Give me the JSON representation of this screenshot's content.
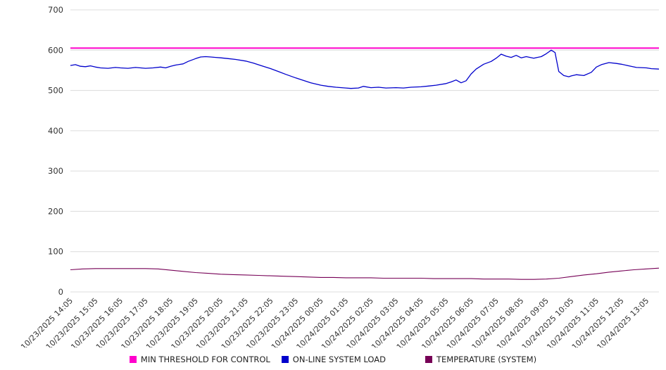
{
  "chart_data": {
    "type": "line",
    "title": "",
    "xlabel": "",
    "ylabel": "",
    "ylim": [
      0,
      700
    ],
    "y_ticks": [
      0,
      100,
      200,
      300,
      400,
      500,
      600,
      700
    ],
    "grid": true,
    "legend_position": "bottom",
    "x_labels": [
      "10/23/2025 14:05",
      "10/23/2025 15:05",
      "10/23/2025 16:05",
      "10/23/2025 17:05",
      "10/23/2025 18:05",
      "10/23/2025 19:05",
      "10/23/2025 20:05",
      "10/23/2025 21:05",
      "10/23/2025 22:05",
      "10/23/2025 23:05",
      "10/24/2025 00:05",
      "10/24/2025 01:05",
      "10/24/2025 02:05",
      "10/24/2025 03:05",
      "10/24/2025 04:05",
      "10/24/2025 05:05",
      "10/24/2025 06:05",
      "10/24/2025 07:05",
      "10/24/2025 08:05",
      "10/24/2025 09:05",
      "10/24/2025 10:05",
      "10/24/2025 11:05",
      "10/24/2025 12:05",
      "10/24/2025 13:05"
    ],
    "series": [
      {
        "name": "MIN THRESHOLD FOR CONTROL",
        "color": "#ff00cc",
        "points": [
          [
            0,
            605
          ],
          [
            23.5,
            605
          ]
        ]
      },
      {
        "name": "ON-LINE SYSTEM LOAD",
        "color": "#0000cc",
        "points": [
          [
            0,
            562
          ],
          [
            0.2,
            564
          ],
          [
            0.4,
            560
          ],
          [
            0.6,
            559
          ],
          [
            0.8,
            561
          ],
          [
            1,
            558
          ],
          [
            1.2,
            556
          ],
          [
            1.5,
            555
          ],
          [
            1.8,
            557
          ],
          [
            2,
            556
          ],
          [
            2.3,
            555
          ],
          [
            2.6,
            557
          ],
          [
            3,
            555
          ],
          [
            3.3,
            556
          ],
          [
            3.6,
            558
          ],
          [
            3.8,
            556
          ],
          [
            4,
            560
          ],
          [
            4.2,
            563
          ],
          [
            4.5,
            566
          ],
          [
            4.7,
            572
          ],
          [
            5,
            579
          ],
          [
            5.2,
            583
          ],
          [
            5.4,
            584
          ],
          [
            5.6,
            583
          ],
          [
            5.8,
            582
          ],
          [
            6,
            581
          ],
          [
            6.3,
            579
          ],
          [
            6.6,
            577
          ],
          [
            7,
            573
          ],
          [
            7.3,
            568
          ],
          [
            7.6,
            562
          ],
          [
            8,
            554
          ],
          [
            8.3,
            547
          ],
          [
            8.6,
            540
          ],
          [
            9,
            531
          ],
          [
            9.3,
            525
          ],
          [
            9.6,
            519
          ],
          [
            10,
            513
          ],
          [
            10.3,
            510
          ],
          [
            10.6,
            508
          ],
          [
            11,
            506
          ],
          [
            11.2,
            505
          ],
          [
            11.5,
            506
          ],
          [
            11.7,
            510
          ],
          [
            12,
            507
          ],
          [
            12.3,
            508
          ],
          [
            12.6,
            506
          ],
          [
            13,
            507
          ],
          [
            13.3,
            506
          ],
          [
            13.6,
            508
          ],
          [
            14,
            509
          ],
          [
            14.3,
            511
          ],
          [
            14.6,
            513
          ],
          [
            15,
            517
          ],
          [
            15.2,
            521
          ],
          [
            15.4,
            526
          ],
          [
            15.6,
            519
          ],
          [
            15.8,
            524
          ],
          [
            16,
            541
          ],
          [
            16.2,
            553
          ],
          [
            16.5,
            565
          ],
          [
            16.8,
            572
          ],
          [
            17,
            580
          ],
          [
            17.2,
            590
          ],
          [
            17.4,
            585
          ],
          [
            17.6,
            582
          ],
          [
            17.8,
            587
          ],
          [
            18,
            581
          ],
          [
            18.2,
            584
          ],
          [
            18.5,
            580
          ],
          [
            18.8,
            584
          ],
          [
            19,
            591
          ],
          [
            19.2,
            600
          ],
          [
            19.35,
            594
          ],
          [
            19.5,
            547
          ],
          [
            19.7,
            537
          ],
          [
            19.9,
            534
          ],
          [
            20,
            536
          ],
          [
            20.2,
            539
          ],
          [
            20.5,
            537
          ],
          [
            20.8,
            545
          ],
          [
            21,
            558
          ],
          [
            21.2,
            564
          ],
          [
            21.5,
            569
          ],
          [
            21.8,
            567
          ],
          [
            22,
            565
          ],
          [
            22.3,
            561
          ],
          [
            22.6,
            557
          ],
          [
            23,
            556
          ],
          [
            23.2,
            554
          ],
          [
            23.5,
            553
          ]
        ]
      },
      {
        "name": "TEMPERATURE (SYSTEM)",
        "color": "#760056",
        "points": [
          [
            0,
            55
          ],
          [
            0.5,
            57
          ],
          [
            1,
            58
          ],
          [
            1.5,
            58
          ],
          [
            2,
            58
          ],
          [
            2.5,
            58
          ],
          [
            3,
            58
          ],
          [
            3.5,
            57
          ],
          [
            4,
            54
          ],
          [
            4.5,
            51
          ],
          [
            5,
            48
          ],
          [
            5.5,
            46
          ],
          [
            6,
            44
          ],
          [
            6.5,
            43
          ],
          [
            7,
            42
          ],
          [
            7.5,
            41
          ],
          [
            8,
            40
          ],
          [
            8.5,
            39
          ],
          [
            9,
            38
          ],
          [
            9.5,
            37
          ],
          [
            10,
            36
          ],
          [
            10.5,
            36
          ],
          [
            11,
            35
          ],
          [
            11.5,
            35
          ],
          [
            12,
            35
          ],
          [
            12.5,
            34
          ],
          [
            13,
            34
          ],
          [
            13.5,
            34
          ],
          [
            14,
            34
          ],
          [
            14.5,
            33
          ],
          [
            15,
            33
          ],
          [
            15.5,
            33
          ],
          [
            16,
            33
          ],
          [
            16.5,
            32
          ],
          [
            17,
            32
          ],
          [
            17.5,
            32
          ],
          [
            18,
            31
          ],
          [
            18.5,
            31
          ],
          [
            19,
            32
          ],
          [
            19.5,
            34
          ],
          [
            20,
            38
          ],
          [
            20.5,
            42
          ],
          [
            21,
            45
          ],
          [
            21.5,
            49
          ],
          [
            22,
            52
          ],
          [
            22.5,
            55
          ],
          [
            23,
            57
          ],
          [
            23.5,
            59
          ]
        ]
      }
    ]
  }
}
